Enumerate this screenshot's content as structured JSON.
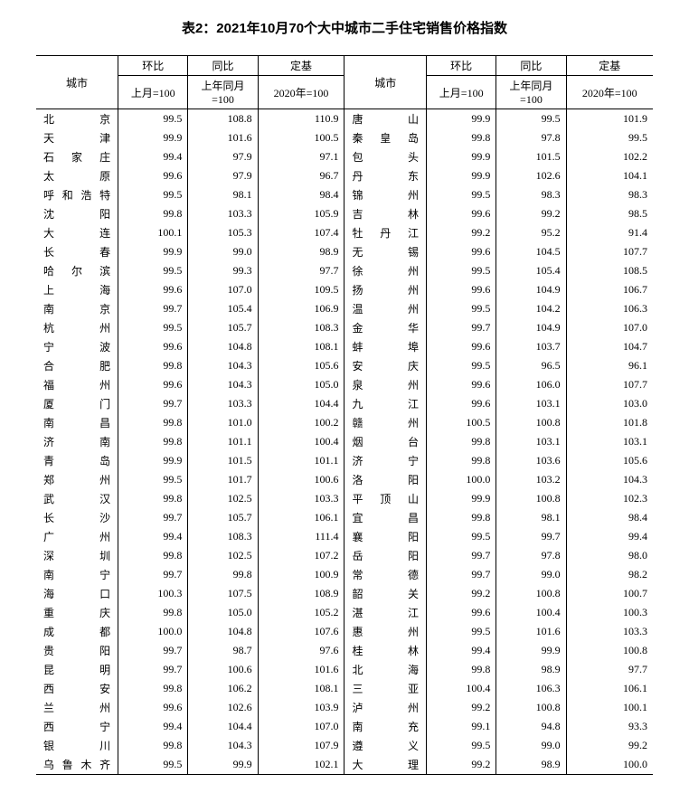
{
  "title": "表2：2021年10月70个大中城市二手住宅销售价格指数",
  "headers": {
    "city": "城市",
    "mom": "环比",
    "yoy": "同比",
    "base": "定基",
    "mom_sub": "上月=100",
    "yoy_sub": "上年同月=100",
    "base_sub": "2020年=100"
  },
  "rows": [
    {
      "c1": "北京",
      "m1": "99.5",
      "y1": "108.8",
      "b1": "110.9",
      "c2": "唐山",
      "m2": "99.9",
      "y2": "99.5",
      "b2": "101.9"
    },
    {
      "c1": "天津",
      "m1": "99.9",
      "y1": "101.6",
      "b1": "100.5",
      "c2": "秦皇岛",
      "m2": "99.8",
      "y2": "97.8",
      "b2": "99.5"
    },
    {
      "c1": "石家庄",
      "m1": "99.4",
      "y1": "97.9",
      "b1": "97.1",
      "c2": "包头",
      "m2": "99.9",
      "y2": "101.5",
      "b2": "102.2"
    },
    {
      "c1": "太原",
      "m1": "99.6",
      "y1": "97.9",
      "b1": "96.7",
      "c2": "丹东",
      "m2": "99.9",
      "y2": "102.6",
      "b2": "104.1"
    },
    {
      "c1": "呼和浩特",
      "m1": "99.5",
      "y1": "98.1",
      "b1": "98.4",
      "c2": "锦州",
      "m2": "99.5",
      "y2": "98.3",
      "b2": "98.3"
    },
    {
      "c1": "沈阳",
      "m1": "99.8",
      "y1": "103.3",
      "b1": "105.9",
      "c2": "吉林",
      "m2": "99.6",
      "y2": "99.2",
      "b2": "98.5"
    },
    {
      "c1": "大连",
      "m1": "100.1",
      "y1": "105.3",
      "b1": "107.4",
      "c2": "牡丹江",
      "m2": "99.2",
      "y2": "95.2",
      "b2": "91.4"
    },
    {
      "c1": "长春",
      "m1": "99.9",
      "y1": "99.0",
      "b1": "98.9",
      "c2": "无锡",
      "m2": "99.6",
      "y2": "104.5",
      "b2": "107.7"
    },
    {
      "c1": "哈尔滨",
      "m1": "99.5",
      "y1": "99.3",
      "b1": "97.7",
      "c2": "徐州",
      "m2": "99.5",
      "y2": "105.4",
      "b2": "108.5"
    },
    {
      "c1": "上海",
      "m1": "99.6",
      "y1": "107.0",
      "b1": "109.5",
      "c2": "扬州",
      "m2": "99.6",
      "y2": "104.9",
      "b2": "106.7"
    },
    {
      "c1": "南京",
      "m1": "99.7",
      "y1": "105.4",
      "b1": "106.9",
      "c2": "温州",
      "m2": "99.5",
      "y2": "104.2",
      "b2": "106.3"
    },
    {
      "c1": "杭州",
      "m1": "99.5",
      "y1": "105.7",
      "b1": "108.3",
      "c2": "金华",
      "m2": "99.7",
      "y2": "104.9",
      "b2": "107.0"
    },
    {
      "c1": "宁波",
      "m1": "99.6",
      "y1": "104.8",
      "b1": "108.1",
      "c2": "蚌埠",
      "m2": "99.6",
      "y2": "103.7",
      "b2": "104.7"
    },
    {
      "c1": "合肥",
      "m1": "99.8",
      "y1": "104.3",
      "b1": "105.6",
      "c2": "安庆",
      "m2": "99.5",
      "y2": "96.5",
      "b2": "96.1"
    },
    {
      "c1": "福州",
      "m1": "99.6",
      "y1": "104.3",
      "b1": "105.0",
      "c2": "泉州",
      "m2": "99.6",
      "y2": "106.0",
      "b2": "107.7"
    },
    {
      "c1": "厦门",
      "m1": "99.7",
      "y1": "103.3",
      "b1": "104.4",
      "c2": "九江",
      "m2": "99.6",
      "y2": "103.1",
      "b2": "103.0"
    },
    {
      "c1": "南昌",
      "m1": "99.8",
      "y1": "101.0",
      "b1": "100.2",
      "c2": "赣州",
      "m2": "100.5",
      "y2": "100.8",
      "b2": "101.8"
    },
    {
      "c1": "济南",
      "m1": "99.8",
      "y1": "101.1",
      "b1": "100.4",
      "c2": "烟台",
      "m2": "99.8",
      "y2": "103.1",
      "b2": "103.1"
    },
    {
      "c1": "青岛",
      "m1": "99.9",
      "y1": "101.5",
      "b1": "101.1",
      "c2": "济宁",
      "m2": "99.8",
      "y2": "103.6",
      "b2": "105.6"
    },
    {
      "c1": "郑州",
      "m1": "99.5",
      "y1": "101.7",
      "b1": "100.6",
      "c2": "洛阳",
      "m2": "100.0",
      "y2": "103.2",
      "b2": "104.3"
    },
    {
      "c1": "武汉",
      "m1": "99.8",
      "y1": "102.5",
      "b1": "103.3",
      "c2": "平顶山",
      "m2": "99.9",
      "y2": "100.8",
      "b2": "102.3"
    },
    {
      "c1": "长沙",
      "m1": "99.7",
      "y1": "105.7",
      "b1": "106.1",
      "c2": "宜昌",
      "m2": "99.8",
      "y2": "98.1",
      "b2": "98.4"
    },
    {
      "c1": "广州",
      "m1": "99.4",
      "y1": "108.3",
      "b1": "111.4",
      "c2": "襄阳",
      "m2": "99.5",
      "y2": "99.7",
      "b2": "99.4"
    },
    {
      "c1": "深圳",
      "m1": "99.8",
      "y1": "102.5",
      "b1": "107.2",
      "c2": "岳阳",
      "m2": "99.7",
      "y2": "97.8",
      "b2": "98.0"
    },
    {
      "c1": "南宁",
      "m1": "99.7",
      "y1": "99.8",
      "b1": "100.9",
      "c2": "常德",
      "m2": "99.7",
      "y2": "99.0",
      "b2": "98.2"
    },
    {
      "c1": "海口",
      "m1": "100.3",
      "y1": "107.5",
      "b1": "108.9",
      "c2": "韶关",
      "m2": "99.2",
      "y2": "100.8",
      "b2": "100.7"
    },
    {
      "c1": "重庆",
      "m1": "99.8",
      "y1": "105.0",
      "b1": "105.2",
      "c2": "湛江",
      "m2": "99.6",
      "y2": "100.4",
      "b2": "100.3"
    },
    {
      "c1": "成都",
      "m1": "100.0",
      "y1": "104.8",
      "b1": "107.6",
      "c2": "惠州",
      "m2": "99.5",
      "y2": "101.6",
      "b2": "103.3"
    },
    {
      "c1": "贵阳",
      "m1": "99.7",
      "y1": "98.7",
      "b1": "97.6",
      "c2": "桂林",
      "m2": "99.4",
      "y2": "99.9",
      "b2": "100.8"
    },
    {
      "c1": "昆明",
      "m1": "99.7",
      "y1": "100.6",
      "b1": "101.6",
      "c2": "北海",
      "m2": "99.8",
      "y2": "98.9",
      "b2": "97.7"
    },
    {
      "c1": "西安",
      "m1": "99.8",
      "y1": "106.2",
      "b1": "108.1",
      "c2": "三亚",
      "m2": "100.4",
      "y2": "106.3",
      "b2": "106.1"
    },
    {
      "c1": "兰州",
      "m1": "99.6",
      "y1": "102.6",
      "b1": "103.9",
      "c2": "泸州",
      "m2": "99.2",
      "y2": "100.8",
      "b2": "100.1"
    },
    {
      "c1": "西宁",
      "m1": "99.4",
      "y1": "104.4",
      "b1": "107.0",
      "c2": "南充",
      "m2": "99.1",
      "y2": "94.8",
      "b2": "93.3"
    },
    {
      "c1": "银川",
      "m1": "99.8",
      "y1": "104.3",
      "b1": "107.9",
      "c2": "遵义",
      "m2": "99.5",
      "y2": "99.0",
      "b2": "99.2"
    },
    {
      "c1": "乌鲁木齐",
      "m1": "99.5",
      "y1": "99.9",
      "b1": "102.1",
      "c2": "大理",
      "m2": "99.2",
      "y2": "98.9",
      "b2": "100.0"
    }
  ]
}
